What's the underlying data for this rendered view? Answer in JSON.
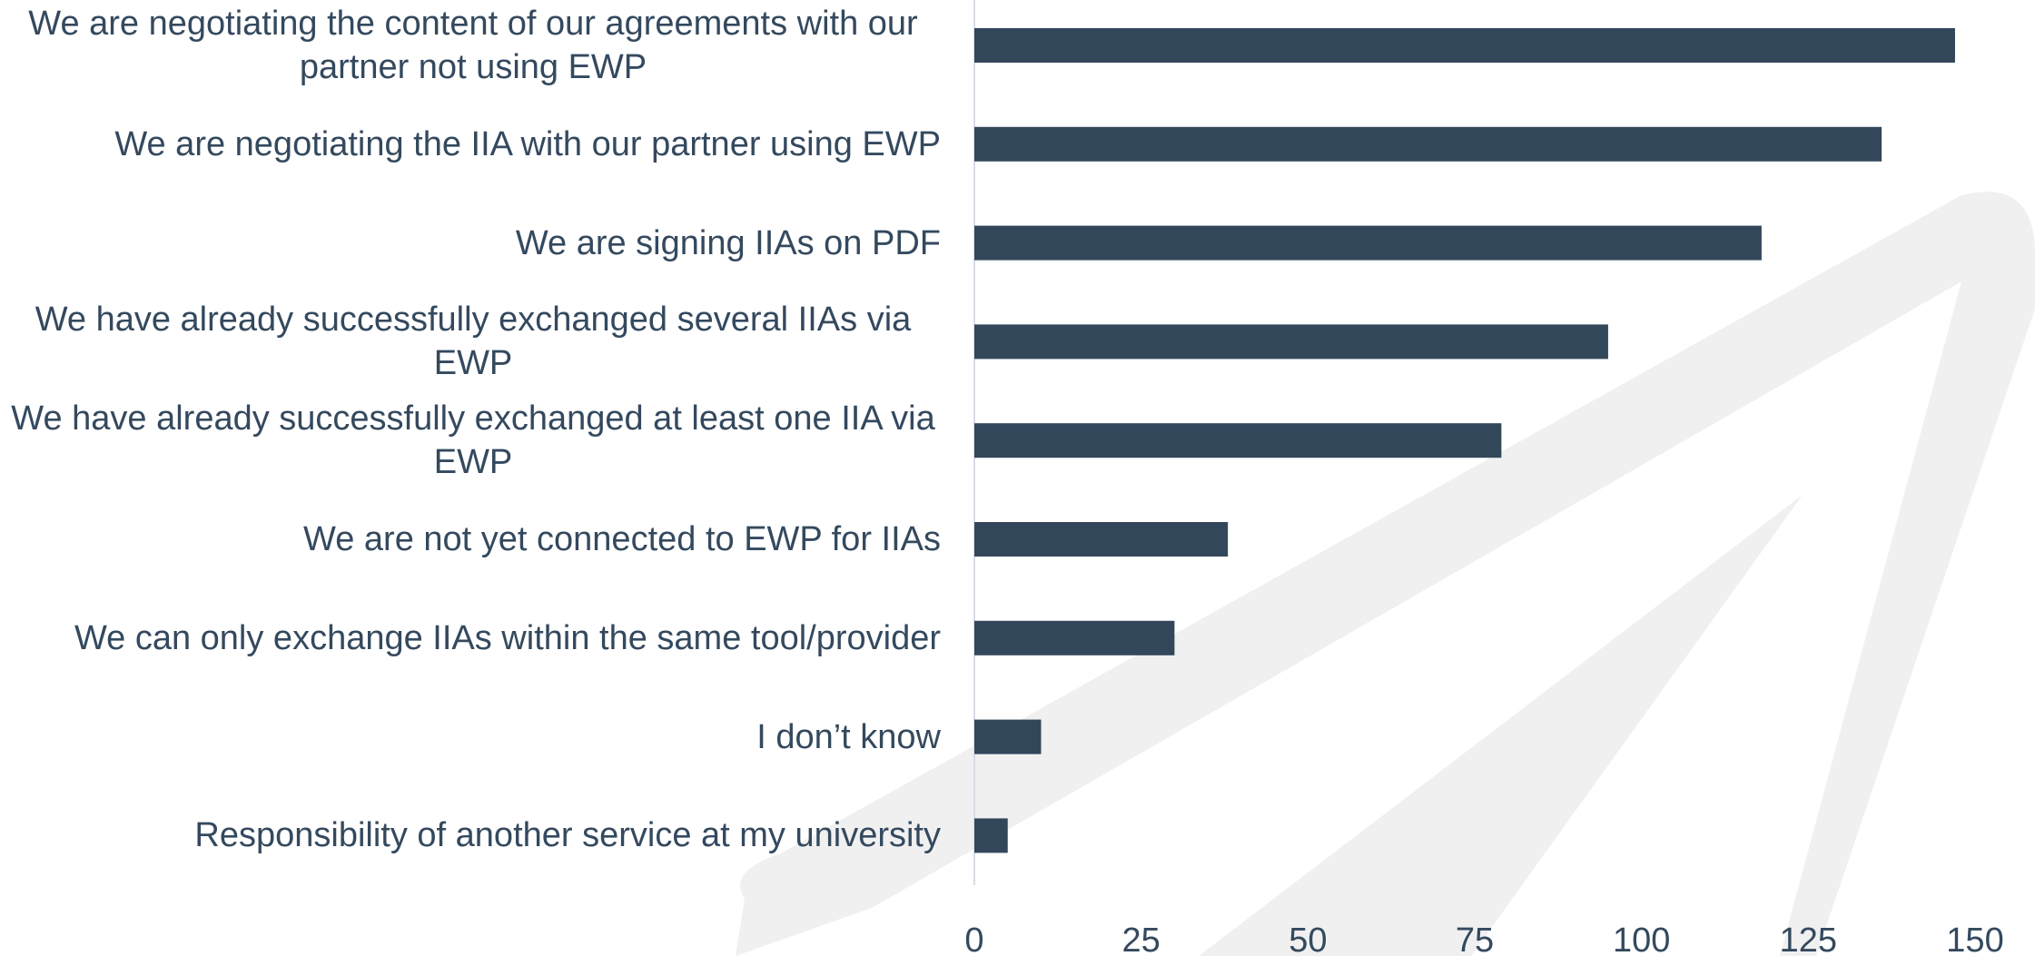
{
  "chart_data": {
    "type": "bar",
    "orientation": "horizontal",
    "categories": [
      "We are negotiating the content of our agreements with our partner not using EWP",
      "We are negotiating the IIA with our partner using EWP",
      "We are signing IIAs on PDF",
      "We have already successfully exchanged several IIAs via EWP",
      "We have already successfully exchanged at least one IIA via EWP",
      "We are not yet connected to EWP for IIAs",
      "We can only exchange IIAs within the same tool/provider",
      "I don’t know",
      "Responsibility of another service at my university"
    ],
    "values": [
      147,
      136,
      118,
      95,
      79,
      38,
      30,
      10,
      5
    ],
    "color": "#33475b",
    "xlim": [
      0,
      150
    ],
    "xticks": [
      0,
      25,
      50,
      75,
      100,
      125,
      150
    ]
  }
}
